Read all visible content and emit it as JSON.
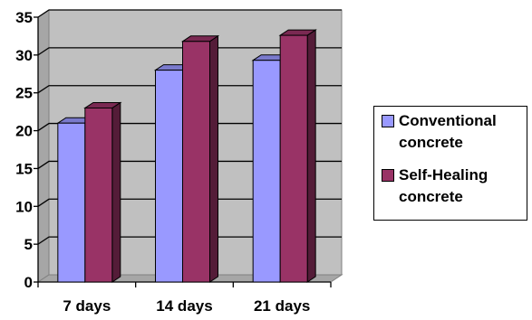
{
  "chart_data": {
    "type": "bar",
    "categories": [
      "7 days",
      "14 days",
      "21 days"
    ],
    "series": [
      {
        "name": "Conventional concrete",
        "values": [
          21,
          28,
          29.3
        ],
        "color": "#9999ff"
      },
      {
        "name": "Self-Healing concrete",
        "values": [
          23,
          31.8,
          32.6
        ],
        "color": "#993366"
      }
    ],
    "ylim": [
      0,
      35
    ],
    "yticks": [
      "0",
      "5",
      "10",
      "15",
      "20",
      "25",
      "30",
      "35"
    ],
    "grid": true,
    "plot_background": "#c0c0c0",
    "three_d": true,
    "legend_position": "right"
  }
}
